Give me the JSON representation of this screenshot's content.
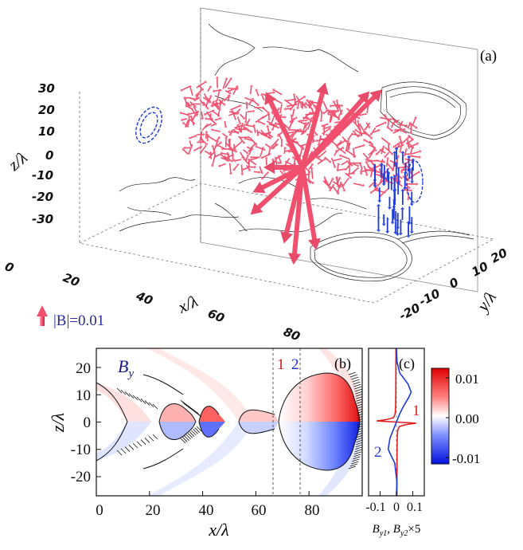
{
  "chart_data": [
    {
      "type": "3d-vector-field",
      "panel_label": "(a)",
      "xlabel": "x/λ",
      "ylabel": "y/λ",
      "zlabel": "z/λ",
      "x_ticks": [
        "0",
        "20",
        "40",
        "60",
        "80"
      ],
      "y_ticks": [
        "20",
        "10",
        "0",
        "-10",
        "-20"
      ],
      "z_ticks": [
        "30",
        "20",
        "10",
        "0",
        "-10",
        "-20",
        "-30"
      ],
      "legend_label": "|B|=0.01",
      "colors": {
        "arrows": "#f0506e",
        "contours_dashed": "#1e3ad8",
        "projection_lines": "#222222"
      }
    },
    {
      "type": "heatmap",
      "panel_label": "(b)",
      "field_label": "By",
      "field_label_main": "B",
      "field_label_sub": "y",
      "xlabel": "x/λ",
      "ylabel": "z/λ",
      "x_ticks": [
        0,
        20,
        40,
        60,
        80
      ],
      "y_ticks": [
        20,
        10,
        0,
        -10,
        -20
      ],
      "xlim": [
        0,
        100
      ],
      "ylim": [
        -27,
        27
      ],
      "cuts": [
        {
          "label": "1",
          "x": 57,
          "color": "#cc1a1a"
        },
        {
          "label": "2",
          "x": 76,
          "color": "#1a2ad0"
        }
      ]
    },
    {
      "type": "line",
      "panel_label": "(c)",
      "xlabel_parts": [
        "B",
        "y1",
        ", B",
        "y2",
        "×5"
      ],
      "x_ticks": [
        "-0.1",
        "0",
        "0.1"
      ],
      "xlim": [
        -0.17,
        0.17
      ],
      "ylim": [
        -27,
        27
      ],
      "series": [
        {
          "name": "1",
          "color": "#e02020",
          "points": [
            [
              0.003,
              -27
            ],
            [
              0.0035,
              -20
            ],
            [
              0.004,
              -12
            ],
            [
              0.005,
              -6
            ],
            [
              0.008,
              -3
            ],
            [
              0.018,
              -1.6
            ],
            [
              0.06,
              -0.9
            ],
            [
              0.12,
              -0.4
            ],
            [
              0,
              0
            ],
            [
              -0.12,
              0.4
            ],
            [
              -0.06,
              0.9
            ],
            [
              -0.018,
              1.6
            ],
            [
              -0.008,
              3
            ],
            [
              -0.005,
              6
            ],
            [
              -0.004,
              12
            ],
            [
              -0.0035,
              20
            ],
            [
              -0.003,
              27
            ]
          ]
        },
        {
          "name": "2",
          "color": "#1e3ad8",
          "points": [
            [
              0,
              -27
            ],
            [
              0.003,
              -22
            ],
            [
              -0.01,
              -15
            ],
            [
              -0.035,
              -12
            ],
            [
              -0.05,
              -10
            ],
            [
              -0.04,
              -6
            ],
            [
              -0.02,
              -3
            ],
            [
              0,
              0
            ],
            [
              0.02,
              3
            ],
            [
              0.045,
              6
            ],
            [
              0.075,
              9
            ],
            [
              0.09,
              11
            ],
            [
              0.07,
              14
            ],
            [
              0.02,
              18
            ],
            [
              0.004,
              22
            ],
            [
              0,
              27
            ]
          ]
        }
      ]
    },
    {
      "type": "colorbar",
      "ticks": [
        "0.01",
        "0.00",
        "-0.01"
      ],
      "range": [
        -0.01,
        0.01
      ]
    }
  ]
}
